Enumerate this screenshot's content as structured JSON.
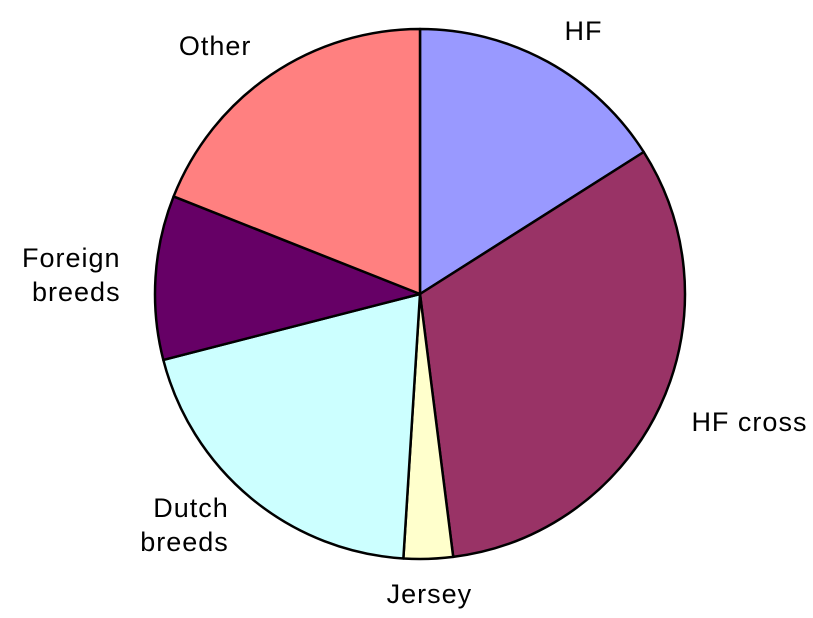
{
  "chart_data": {
    "type": "pie",
    "categories": [
      "HF",
      "HF cross",
      "Jersey",
      "Dutch breeds",
      "Foreign breeds",
      "Other"
    ],
    "values": [
      16,
      32,
      3,
      20,
      10,
      19
    ],
    "colors": [
      "#9999ff",
      "#993366",
      "#ffffcc",
      "#ccffff",
      "#660066",
      "#ff8080"
    ]
  }
}
